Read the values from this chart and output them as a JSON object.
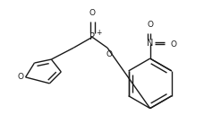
{
  "bg_color": "#ffffff",
  "line_color": "#1a1a1a",
  "line_width": 1.0,
  "font_size": 6.5,
  "figsize": [
    2.47,
    1.48
  ],
  "dpi": 100,
  "xlim": [
    0,
    247
  ],
  "ylim": [
    0,
    148
  ]
}
